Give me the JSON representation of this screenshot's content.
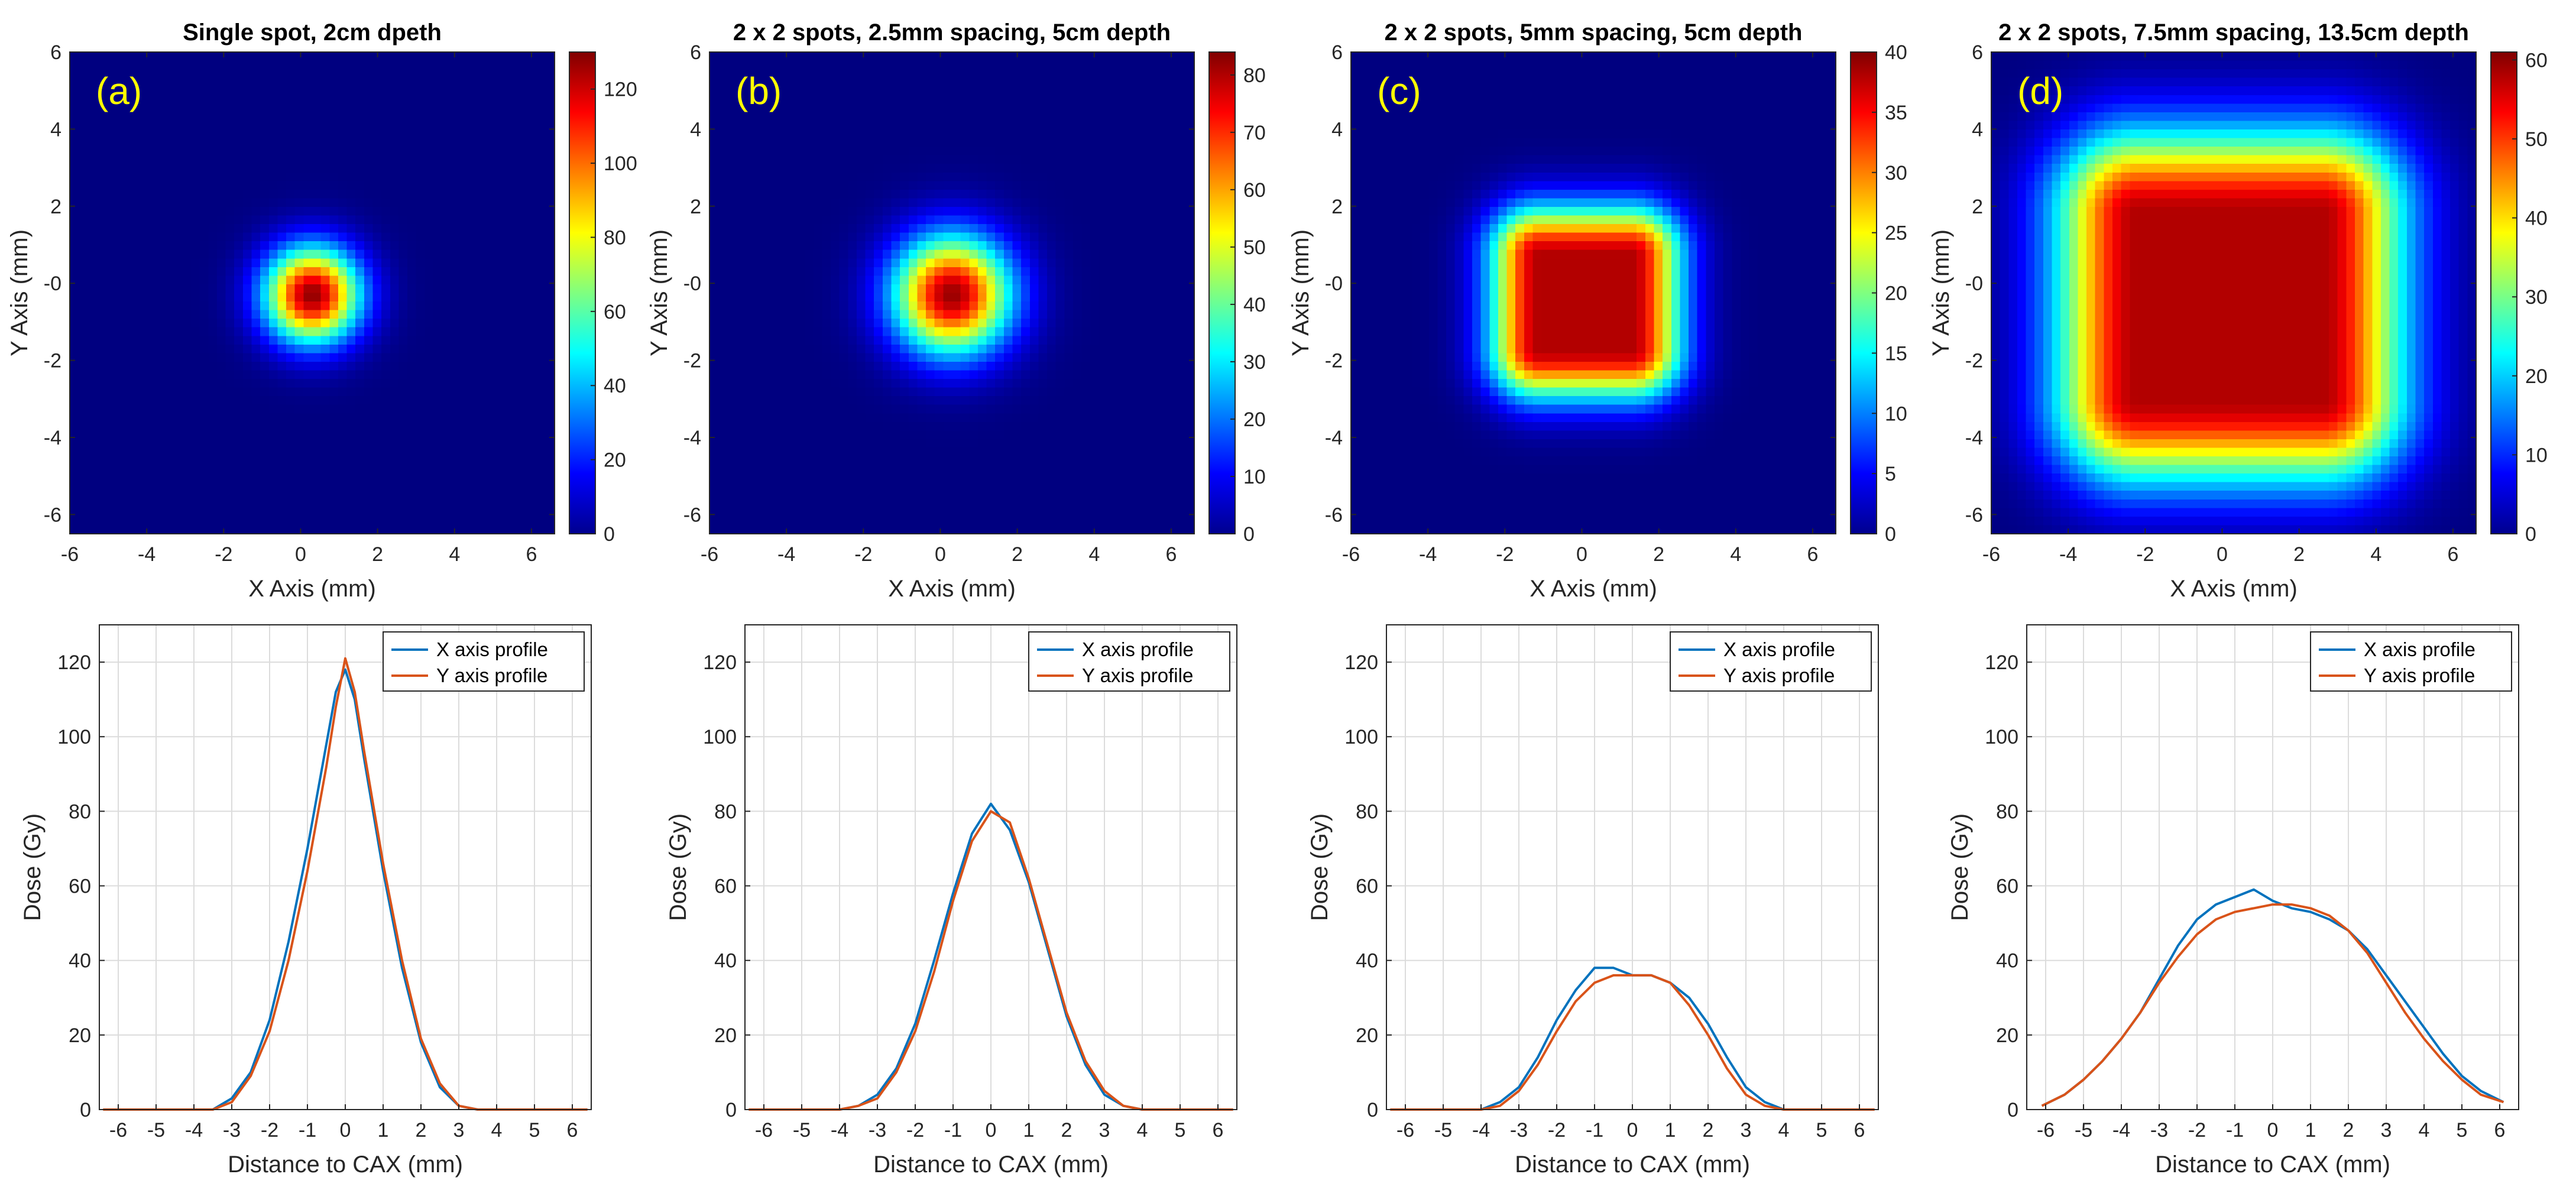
{
  "chart_data": [
    {
      "type": "heatmap",
      "panel_label": "(a)",
      "title": "Single spot, 2cm dpeth",
      "xlabel": "X Axis (mm)",
      "ylabel": "Y Axis (mm)",
      "xlim": [
        -6,
        6.6
      ],
      "ylim": [
        -6.5,
        6
      ],
      "xticks": [
        "-6",
        "-4",
        "-2",
        "0",
        "2",
        "4",
        "6"
      ],
      "yticks": [
        "6",
        "4",
        "2",
        "-0",
        "-2",
        "-4",
        "-6"
      ],
      "colorbar": {
        "min": 0,
        "max": 130,
        "ticks": [
          "0",
          "20",
          "40",
          "60",
          "80",
          "100",
          "120"
        ]
      },
      "peak": 128,
      "center": [
        0.3,
        -0.3
      ],
      "shape": "circle",
      "core_half_width": 0,
      "sigma": 0.85
    },
    {
      "type": "heatmap",
      "panel_label": "(b)",
      "title": "2 x 2 spots, 2.5mm spacing, 5cm depth",
      "xlabel": "X Axis (mm)",
      "ylabel": "Y Axis (mm)",
      "xlim": [
        -6,
        6.6
      ],
      "ylim": [
        -6.5,
        6
      ],
      "xticks": [
        "-6",
        "-4",
        "-2",
        "0",
        "2",
        "4",
        "6"
      ],
      "yticks": [
        "6",
        "4",
        "2",
        "-0",
        "-2",
        "-4",
        "-6"
      ],
      "colorbar": {
        "min": 0,
        "max": 84,
        "ticks": [
          "0",
          "10",
          "20",
          "30",
          "40",
          "50",
          "60",
          "70",
          "80"
        ]
      },
      "peak": 82,
      "center": [
        0.3,
        -0.3
      ],
      "shape": "circle",
      "core_half_width": 0,
      "sigma": 1.05
    },
    {
      "type": "heatmap",
      "panel_label": "(c)",
      "title": "2 x 2 spots, 5mm spacing, 5cm depth",
      "xlabel": "X Axis (mm)",
      "ylabel": "Y Axis (mm)",
      "xlim": [
        -6,
        6.6
      ],
      "ylim": [
        -6.5,
        6
      ],
      "xticks": [
        "-6",
        "-4",
        "-2",
        "0",
        "2",
        "4",
        "6"
      ],
      "yticks": [
        "6",
        "4",
        "2",
        "-0",
        "-2",
        "-4",
        "-6"
      ],
      "colorbar": {
        "min": 0,
        "max": 40,
        "ticks": [
          "0",
          "5",
          "10",
          "15",
          "20",
          "25",
          "30",
          "35",
          "40"
        ]
      },
      "peak": 38,
      "center": [
        0.1,
        -0.5
      ],
      "shape": "square",
      "core_half_width": 1.2,
      "sigma": 0.9
    },
    {
      "type": "heatmap",
      "panel_label": "(d)",
      "title": "2 x 2 spots, 7.5mm spacing, 13.5cm depth",
      "xlabel": "X Axis (mm)",
      "ylabel": "Y Axis (mm)",
      "xlim": [
        -6,
        6.6
      ],
      "ylim": [
        -6.5,
        6
      ],
      "xticks": [
        "-6",
        "-4",
        "-2",
        "0",
        "2",
        "4",
        "6"
      ],
      "yticks": [
        "6",
        "4",
        "2",
        "-0",
        "-2",
        "-4",
        "-6"
      ],
      "colorbar": {
        "min": 0,
        "max": 61,
        "ticks": [
          "0",
          "10",
          "20",
          "30",
          "40",
          "50",
          "60"
        ]
      },
      "peak": 58,
      "center": [
        0.2,
        -0.6
      ],
      "shape": "square",
      "core_half_width": 2.4,
      "sigma": 1.5
    },
    {
      "type": "line",
      "xlabel": "Distance to CAX (mm)",
      "ylabel": "Dose (Gy)",
      "xlim": [
        -6.5,
        6.5
      ],
      "ylim": [
        0,
        130
      ],
      "xticks": [
        "-6",
        "-5",
        "-4",
        "-3",
        "-2",
        "-1",
        "0",
        "1",
        "2",
        "3",
        "4",
        "5",
        "6"
      ],
      "yticks": [
        "0",
        "20",
        "40",
        "60",
        "80",
        "100",
        "120"
      ],
      "legend_position": "top-right",
      "series": [
        {
          "name": "X axis profile",
          "color": "#0072bd",
          "x": [
            -6.4,
            -3.5,
            -3.0,
            -2.5,
            -2.0,
            -1.5,
            -1.0,
            -0.5,
            -0.25,
            0,
            0.25,
            0.5,
            1.0,
            1.5,
            2.0,
            2.5,
            3.0,
            3.5,
            6.4
          ],
          "y": [
            0,
            0,
            3,
            10,
            24,
            45,
            70,
            98,
            112,
            118,
            110,
            94,
            64,
            38,
            18,
            6,
            1,
            0,
            0
          ]
        },
        {
          "name": "Y axis profile",
          "color": "#d95319",
          "x": [
            -6.4,
            -3.5,
            -3.0,
            -2.5,
            -2.0,
            -1.5,
            -1.0,
            -0.5,
            -0.25,
            0,
            0.25,
            0.5,
            1.0,
            1.5,
            2.0,
            2.5,
            3.0,
            3.5,
            6.4
          ],
          "y": [
            0,
            0,
            2,
            9,
            21,
            40,
            64,
            92,
            108,
            121,
            112,
            96,
            66,
            40,
            19,
            7,
            1,
            0,
            0
          ]
        }
      ]
    },
    {
      "type": "line",
      "xlabel": "Distance to CAX (mm)",
      "ylabel": "Dose (Gy)",
      "xlim": [
        -6.5,
        6.5
      ],
      "ylim": [
        0,
        130
      ],
      "xticks": [
        "-6",
        "-5",
        "-4",
        "-3",
        "-2",
        "-1",
        "0",
        "1",
        "2",
        "3",
        "4",
        "5",
        "6"
      ],
      "yticks": [
        "0",
        "20",
        "40",
        "60",
        "80",
        "100",
        "120"
      ],
      "legend_position": "top-right",
      "series": [
        {
          "name": "X axis profile",
          "color": "#0072bd",
          "x": [
            -6.4,
            -4.0,
            -3.5,
            -3.0,
            -2.5,
            -2.0,
            -1.5,
            -1.0,
            -0.5,
            0,
            0.5,
            1.0,
            1.5,
            2.0,
            2.5,
            3.0,
            3.5,
            4.0,
            6.4
          ],
          "y": [
            0,
            0,
            1,
            4,
            11,
            23,
            40,
            58,
            74,
            82,
            75,
            61,
            43,
            25,
            12,
            4,
            1,
            0,
            0
          ]
        },
        {
          "name": "Y axis profile",
          "color": "#d95319",
          "x": [
            -6.4,
            -4.0,
            -3.5,
            -3.0,
            -2.5,
            -2.0,
            -1.5,
            -1.0,
            -0.5,
            0,
            0.5,
            1.0,
            1.5,
            2.0,
            2.5,
            3.0,
            3.5,
            4.0,
            6.4
          ],
          "y": [
            0,
            0,
            1,
            3,
            10,
            21,
            37,
            56,
            72,
            80,
            77,
            62,
            44,
            26,
            13,
            5,
            1,
            0,
            0
          ]
        }
      ]
    },
    {
      "type": "line",
      "xlabel": "Distance to CAX (mm)",
      "ylabel": "Dose (Gy)",
      "xlim": [
        -6.5,
        6.5
      ],
      "ylim": [
        0,
        130
      ],
      "xticks": [
        "-6",
        "-5",
        "-4",
        "-3",
        "-2",
        "-1",
        "0",
        "1",
        "2",
        "3",
        "4",
        "5",
        "6"
      ],
      "yticks": [
        "0",
        "20",
        "40",
        "60",
        "80",
        "100",
        "120"
      ],
      "legend_position": "top-right",
      "series": [
        {
          "name": "X axis profile",
          "color": "#0072bd",
          "x": [
            -6.4,
            -4.0,
            -3.5,
            -3.0,
            -2.5,
            -2.0,
            -1.5,
            -1.0,
            -0.5,
            0,
            0.5,
            1.0,
            1.5,
            2.0,
            2.5,
            3.0,
            3.5,
            4.0,
            6.4
          ],
          "y": [
            0,
            0,
            2,
            6,
            14,
            24,
            32,
            38,
            38,
            36,
            36,
            34,
            30,
            23,
            14,
            6,
            2,
            0,
            0
          ]
        },
        {
          "name": "Y axis profile",
          "color": "#d95319",
          "x": [
            -6.4,
            -4.0,
            -3.5,
            -3.0,
            -2.5,
            -2.0,
            -1.5,
            -1.0,
            -0.5,
            0,
            0.5,
            1.0,
            1.5,
            2.0,
            2.5,
            3.0,
            3.5,
            4.0,
            6.4
          ],
          "y": [
            0,
            0,
            1,
            5,
            12,
            21,
            29,
            34,
            36,
            36,
            36,
            34,
            28,
            20,
            11,
            4,
            1,
            0,
            0
          ]
        }
      ]
    },
    {
      "type": "line",
      "xlabel": "Distance to CAX (mm)",
      "ylabel": "Dose (Gy)",
      "xlim": [
        -6.5,
        6.5
      ],
      "ylim": [
        0,
        130
      ],
      "xticks": [
        "-6",
        "-5",
        "-4",
        "-3",
        "-2",
        "-1",
        "0",
        "1",
        "2",
        "3",
        "4",
        "5",
        "6"
      ],
      "yticks": [
        "0",
        "20",
        "40",
        "60",
        "80",
        "100",
        "120"
      ],
      "legend_position": "top-right",
      "series": [
        {
          "name": "X axis profile",
          "color": "#0072bd",
          "x": [
            -6.1,
            -5.5,
            -5.0,
            -4.5,
            -4.0,
            -3.5,
            -3.0,
            -2.5,
            -2.0,
            -1.5,
            -1.0,
            -0.5,
            0,
            0.5,
            1.0,
            1.5,
            2.0,
            2.5,
            3.0,
            3.5,
            4.0,
            4.5,
            5.0,
            5.5,
            6.1
          ],
          "y": [
            1,
            4,
            8,
            13,
            19,
            26,
            35,
            44,
            51,
            55,
            57,
            59,
            56,
            54,
            53,
            51,
            48,
            43,
            36,
            29,
            22,
            15,
            9,
            5,
            2
          ]
        },
        {
          "name": "Y axis profile",
          "color": "#d95319",
          "x": [
            -6.1,
            -5.5,
            -5.0,
            -4.5,
            -4.0,
            -3.5,
            -3.0,
            -2.5,
            -2.0,
            -1.5,
            -1.0,
            -0.5,
            0,
            0.5,
            1.0,
            1.5,
            2.0,
            2.5,
            3.0,
            3.5,
            4.0,
            4.5,
            5.0,
            5.5,
            6.1
          ],
          "y": [
            1,
            4,
            8,
            13,
            19,
            26,
            34,
            41,
            47,
            51,
            53,
            54,
            55,
            55,
            54,
            52,
            48,
            42,
            34,
            26,
            19,
            13,
            8,
            4,
            2
          ]
        }
      ]
    }
  ]
}
